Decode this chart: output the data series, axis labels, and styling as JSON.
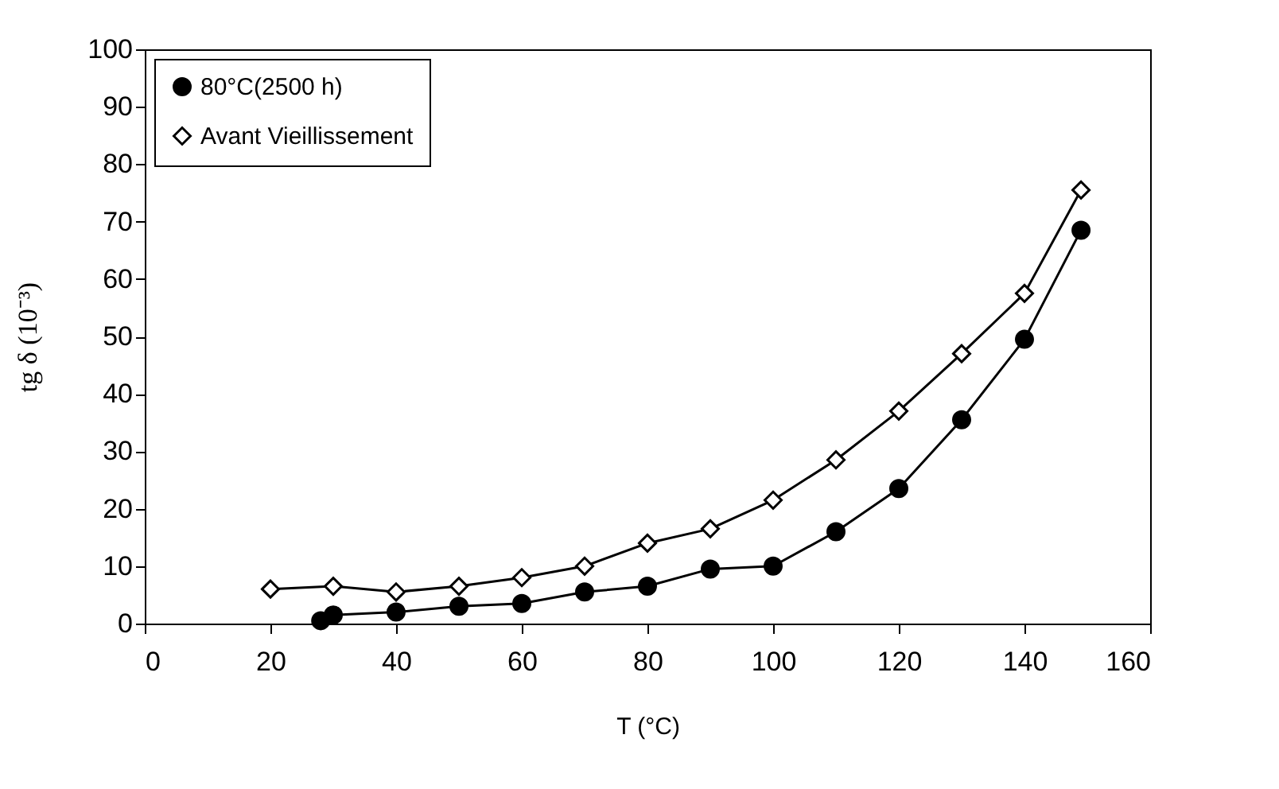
{
  "chart_data": {
    "type": "line",
    "xlabel": "T (°C)",
    "ylabel": "tg δ (10⁻³)",
    "xlim": [
      0,
      160
    ],
    "ylim": [
      0,
      100
    ],
    "xticks": [
      0,
      20,
      40,
      60,
      80,
      100,
      120,
      140,
      160
    ],
    "yticks": [
      0,
      10,
      20,
      30,
      40,
      50,
      60,
      70,
      80,
      90,
      100
    ],
    "grid": false,
    "legend": "top left",
    "series": [
      {
        "name": "80°C(2500 h)",
        "color": "#000000",
        "marker": "circle",
        "x": [
          28,
          30,
          40,
          50,
          60,
          70,
          80,
          90,
          100,
          110,
          120,
          130,
          140,
          149
        ],
        "values": [
          0.5,
          1.5,
          2,
          3,
          3.5,
          5.5,
          6.5,
          9.5,
          10,
          16,
          23.5,
          35.5,
          49.5,
          68.5
        ]
      },
      {
        "name": "Avant Vieillissement",
        "color": "#000000",
        "marker": "diamond",
        "x": [
          20,
          30,
          40,
          50,
          60,
          70,
          80,
          90,
          100,
          110,
          120,
          130,
          140,
          149
        ],
        "values": [
          6,
          6.5,
          5.5,
          6.5,
          8,
          10,
          14,
          16.5,
          21.5,
          28.5,
          37,
          47,
          57.5,
          75.5
        ]
      }
    ]
  }
}
